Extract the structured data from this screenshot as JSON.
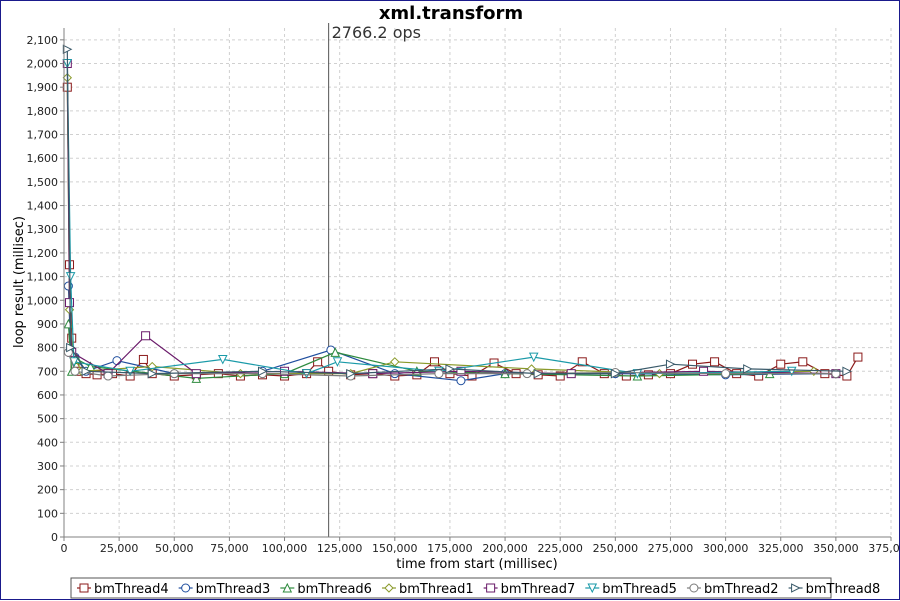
{
  "chart_data": {
    "type": "line",
    "title": "xml.transform",
    "xlabel": "time from start (millisec)",
    "ylabel": "loop result (millisec)",
    "xlim": [
      0,
      375000
    ],
    "ylim": [
      0,
      2150
    ],
    "x_ticks": [
      "0",
      "25,000",
      "50,000",
      "75,000",
      "100,000",
      "125,000",
      "150,000",
      "175,000",
      "200,000",
      "225,000",
      "250,000",
      "275,000",
      "300,000",
      "325,000",
      "350,000",
      "375,000"
    ],
    "y_ticks": [
      "0",
      "100",
      "200",
      "300",
      "400",
      "500",
      "600",
      "700",
      "800",
      "900",
      "1,000",
      "1,100",
      "1,200",
      "1,300",
      "1,400",
      "1,500",
      "1,600",
      "1,700",
      "1,800",
      "1,900",
      "2,000",
      "2,100"
    ],
    "grid": true,
    "legend_position": "bottom",
    "annotation": {
      "x": 120000,
      "label": "2766.2 ops"
    },
    "series": [
      {
        "name": "bmThread4",
        "marker": "square",
        "color": "#8b1a1a",
        "x": [
          1500,
          2500,
          3500,
          5000,
          7000,
          10000,
          15000,
          22000,
          30000,
          36000,
          40000,
          50000,
          60000,
          70000,
          80000,
          90000,
          100000,
          110000,
          115000,
          120000,
          130000,
          140000,
          150000,
          160000,
          168000,
          175000,
          185000,
          195000,
          205000,
          215000,
          225000,
          235000,
          245000,
          255000,
          265000,
          275000,
          285000,
          295000,
          305000,
          315000,
          325000,
          335000,
          345000,
          355000,
          360000
        ],
        "y": [
          1900,
          1150,
          840,
          720,
          700,
          690,
          685,
          690,
          680,
          750,
          690,
          680,
          685,
          690,
          680,
          685,
          680,
          690,
          740,
          700,
          685,
          690,
          680,
          685,
          740,
          690,
          680,
          735,
          690,
          685,
          680,
          740,
          690,
          680,
          685,
          690,
          730,
          740,
          690,
          680,
          730,
          740,
          690,
          680,
          760
        ]
      },
      {
        "name": "bmThread3",
        "marker": "circle",
        "color": "#1f4e9e",
        "x": [
          2000,
          3000,
          5000,
          10000,
          24000,
          50000,
          90000,
          121000,
          150000,
          180000,
          200000,
          250000,
          300000,
          350000
        ],
        "y": [
          1060,
          790,
          760,
          700,
          745,
          690,
          700,
          790,
          690,
          660,
          690,
          690,
          685,
          690
        ]
      },
      {
        "name": "bmThread6",
        "marker": "triangle-up",
        "color": "#2e8b3e",
        "x": [
          2000,
          3500,
          6000,
          12000,
          60000,
          100000,
          123000,
          160000,
          200000,
          260000,
          320000
        ],
        "y": [
          900,
          700,
          750,
          720,
          670,
          690,
          780,
          700,
          690,
          680,
          690
        ]
      },
      {
        "name": "bmThread1",
        "marker": "diamond",
        "color": "#8a9a2a",
        "x": [
          1500,
          2500,
          4000,
          8000,
          40000,
          80000,
          130000,
          150000,
          212000,
          270000,
          340000
        ],
        "y": [
          1940,
          960,
          770,
          700,
          720,
          690,
          690,
          740,
          710,
          690,
          700
        ]
      },
      {
        "name": "bmThread7",
        "marker": "square",
        "color": "#6a1b6a",
        "x": [
          1500,
          2500,
          3500,
          20000,
          37000,
          60000,
          100000,
          140000,
          180000,
          230000,
          290000,
          350000
        ],
        "y": [
          2000,
          990,
          780,
          690,
          850,
          690,
          700,
          690,
          700,
          690,
          700,
          690
        ]
      },
      {
        "name": "bmThread5",
        "marker": "triangle-down",
        "color": "#1a9aa8",
        "x": [
          1500,
          3000,
          4500,
          30000,
          72000,
          110000,
          124000,
          170000,
          213000,
          260000,
          330000
        ],
        "y": [
          2000,
          1100,
          740,
          700,
          750,
          690,
          740,
          700,
          760,
          690,
          700
        ]
      },
      {
        "name": "bmThread2",
        "marker": "circle",
        "color": "#7a7a7a",
        "x": [
          2000,
          5000,
          20000,
          50000,
          90000,
          130000,
          170000,
          210000,
          250000,
          300000,
          350000
        ],
        "y": [
          780,
          700,
          680,
          690,
          690,
          680,
          690,
          690,
          695,
          690,
          690
        ]
      },
      {
        "name": "bmThread8",
        "marker": "triangle-right",
        "color": "#3a5a6a",
        "x": [
          1500,
          3000,
          10000,
          40000,
          90000,
          130000,
          175000,
          215000,
          250000,
          275000,
          310000,
          355000
        ],
        "y": [
          2060,
          800,
          700,
          690,
          700,
          690,
          710,
          690,
          690,
          730,
          710,
          700
        ]
      }
    ]
  }
}
